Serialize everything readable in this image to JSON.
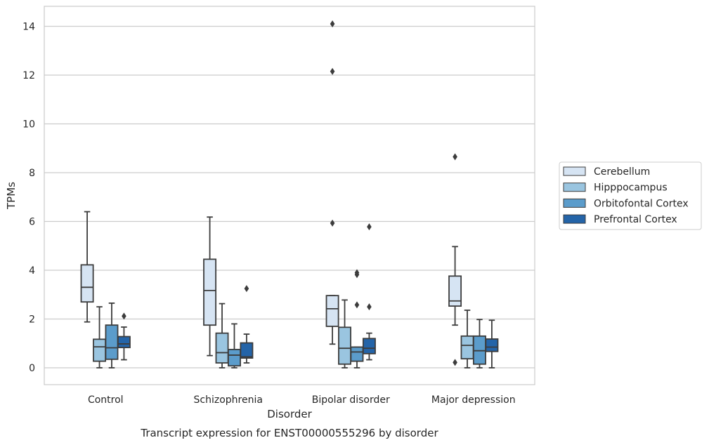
{
  "chart_data": {
    "type": "box",
    "title": "Transcript expression for ENST00000555296 by disorder",
    "xlabel": "Disorder",
    "ylabel": "TPMs",
    "categories": [
      "Control",
      "Schizophrenia",
      "Bipolar disorder",
      "Major depression"
    ],
    "y_ticks": [
      0,
      2,
      4,
      6,
      8,
      10,
      12,
      14
    ],
    "ylim": [
      -0.7,
      14.8
    ],
    "grid": "horizontal",
    "legend_position": "right",
    "series": [
      {
        "name": "Cerebellum",
        "color": "#d6e4f3",
        "boxes": [
          {
            "whisker_low": 1.88,
            "q1": 2.7,
            "median": 3.3,
            "q3": 4.22,
            "whisker_high": 6.4,
            "outliers": []
          },
          {
            "whisker_low": 0.5,
            "q1": 1.75,
            "median": 3.17,
            "q3": 4.45,
            "whisker_high": 6.18,
            "outliers": []
          },
          {
            "whisker_low": 0.97,
            "q1": 1.7,
            "median": 2.42,
            "q3": 2.96,
            "whisker_high": 2.96,
            "outliers": [
              5.93,
              12.15,
              14.1
            ]
          },
          {
            "whisker_low": 1.75,
            "q1": 2.53,
            "median": 2.74,
            "q3": 3.76,
            "whisker_high": 4.97,
            "outliers": [
              0.22,
              8.65
            ]
          }
        ]
      },
      {
        "name": "Hipppocampus",
        "color": "#9ac5e0",
        "boxes": [
          {
            "whisker_low": 0.0,
            "q1": 0.27,
            "median": 0.86,
            "q3": 1.17,
            "whisker_high": 2.5,
            "outliers": []
          },
          {
            "whisker_low": 0.0,
            "q1": 0.2,
            "median": 0.62,
            "q3": 1.42,
            "whisker_high": 2.63,
            "outliers": []
          },
          {
            "whisker_low": 0.0,
            "q1": 0.15,
            "median": 0.8,
            "q3": 1.66,
            "whisker_high": 2.78,
            "outliers": []
          },
          {
            "whisker_low": 0.0,
            "q1": 0.37,
            "median": 0.92,
            "q3": 1.3,
            "whisker_high": 2.36,
            "outliers": []
          }
        ]
      },
      {
        "name": "Orbitofontal Cortex",
        "color": "#5b9ccb",
        "boxes": [
          {
            "whisker_low": 0.0,
            "q1": 0.35,
            "median": 0.82,
            "q3": 1.75,
            "whisker_high": 2.65,
            "outliers": []
          },
          {
            "whisker_low": 0.0,
            "q1": 0.08,
            "median": 0.52,
            "q3": 0.75,
            "whisker_high": 1.8,
            "outliers": []
          },
          {
            "whisker_low": 0.0,
            "q1": 0.27,
            "median": 0.65,
            "q3": 0.85,
            "whisker_high": 0.85,
            "outliers": [
              2.58,
              3.82,
              3.9
            ]
          },
          {
            "whisker_low": 0.0,
            "q1": 0.15,
            "median": 0.7,
            "q3": 1.3,
            "whisker_high": 1.98,
            "outliers": []
          }
        ]
      },
      {
        "name": "Prefrontal Cortex",
        "color": "#2464a8",
        "boxes": [
          {
            "whisker_low": 0.33,
            "q1": 0.83,
            "median": 0.98,
            "q3": 1.28,
            "whisker_high": 1.67,
            "outliers": [
              2.12
            ]
          },
          {
            "whisker_low": 0.2,
            "q1": 0.4,
            "median": 0.45,
            "q3": 1.02,
            "whisker_high": 1.38,
            "outliers": [
              3.25
            ]
          },
          {
            "whisker_low": 0.33,
            "q1": 0.58,
            "median": 0.8,
            "q3": 1.2,
            "whisker_high": 1.42,
            "outliers": [
              2.5,
              5.78
            ]
          },
          {
            "whisker_low": 0.0,
            "q1": 0.67,
            "median": 0.85,
            "q3": 1.18,
            "whisker_high": 1.95,
            "outliers": []
          }
        ]
      }
    ]
  }
}
